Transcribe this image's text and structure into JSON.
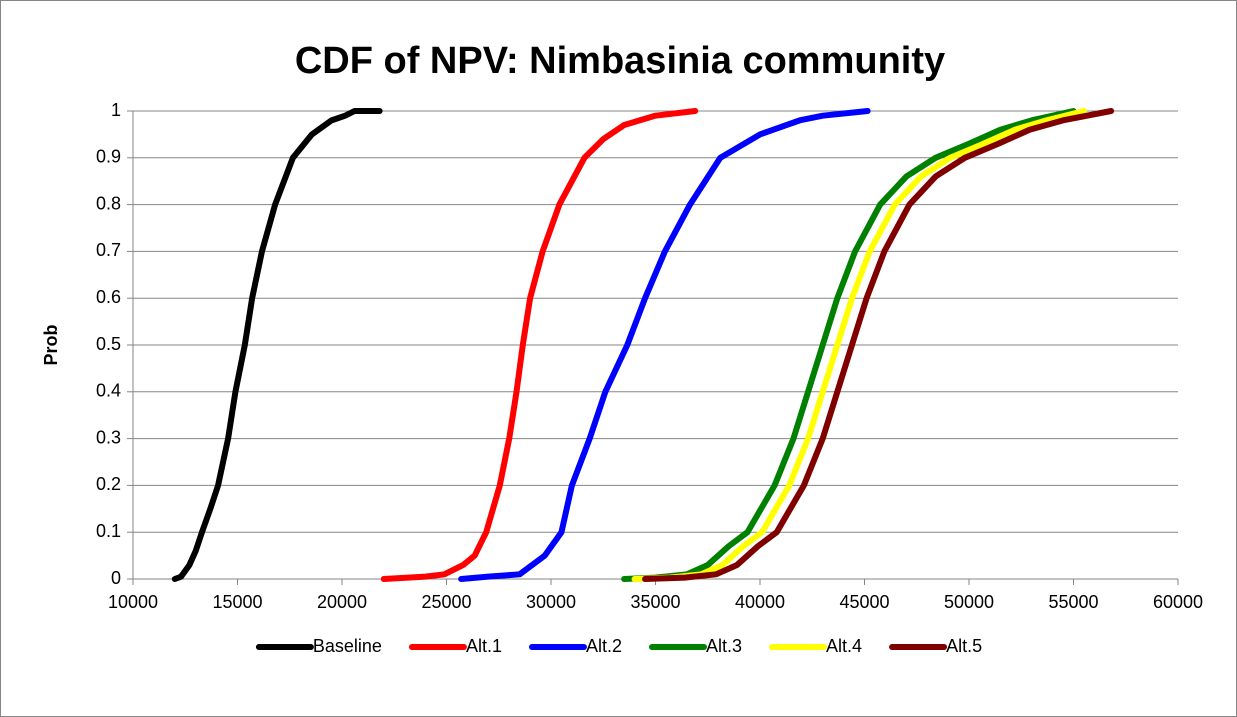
{
  "chart_data": {
    "type": "line",
    "title": "CDF of NPV: Nimbasinia community",
    "ylabel": "Prob",
    "xlim": [
      10000,
      60000
    ],
    "xticks": [
      10000,
      15000,
      20000,
      25000,
      30000,
      35000,
      40000,
      45000,
      50000,
      55000,
      60000
    ],
    "ylim": [
      0,
      1
    ],
    "yticks": [
      0,
      0.1,
      0.2,
      0.3,
      0.4,
      0.5,
      0.6,
      0.7,
      0.8,
      0.9,
      1
    ],
    "grid": true,
    "legend": "bottom",
    "series": [
      {
        "name": "Baseline",
        "color": "#000000",
        "x": [
          12000,
          12300,
          12700,
          13000,
          13300,
          13700,
          14070,
          14550,
          14900,
          15350,
          15700,
          16170,
          16800,
          17650,
          18560,
          19500,
          20150,
          20600,
          21800
        ],
        "values": [
          0,
          0.005,
          0.03,
          0.06,
          0.1,
          0.15,
          0.2,
          0.3,
          0.4,
          0.5,
          0.6,
          0.7,
          0.8,
          0.9,
          0.95,
          0.98,
          0.99,
          1,
          1
        ]
      },
      {
        "name": "Alt.1",
        "color": "#ff0000",
        "x": [
          22000,
          24000,
          24900,
          25800,
          26350,
          26900,
          27550,
          28000,
          28350,
          28650,
          29000,
          29600,
          30400,
          31600,
          32500,
          33500,
          35000,
          36900
        ],
        "values": [
          0,
          0.005,
          0.01,
          0.03,
          0.05,
          0.1,
          0.2,
          0.3,
          0.4,
          0.5,
          0.6,
          0.7,
          0.8,
          0.9,
          0.94,
          0.97,
          0.99,
          1
        ]
      },
      {
        "name": "Alt.2",
        "color": "#0000ff",
        "x": [
          25700,
          27000,
          28500,
          29700,
          30500,
          31000,
          31850,
          32600,
          33650,
          34500,
          35450,
          36650,
          38100,
          40000,
          41900,
          43000,
          45150
        ],
        "values": [
          0,
          0.005,
          0.01,
          0.05,
          0.1,
          0.2,
          0.3,
          0.4,
          0.5,
          0.6,
          0.7,
          0.8,
          0.9,
          0.95,
          0.98,
          0.99,
          1
        ]
      },
      {
        "name": "Alt.3",
        "color": "#008000",
        "x": [
          33500,
          35000,
          36500,
          37500,
          38500,
          39400,
          40700,
          41600,
          42300,
          43000,
          43700,
          44550,
          45750,
          47000,
          48400,
          50000,
          51500,
          53000,
          55000
        ],
        "values": [
          0,
          0.003,
          0.01,
          0.03,
          0.07,
          0.1,
          0.2,
          0.3,
          0.4,
          0.5,
          0.6,
          0.7,
          0.8,
          0.86,
          0.9,
          0.93,
          0.96,
          0.98,
          1
        ]
      },
      {
        "name": "Alt.4",
        "color": "#ffff00",
        "x": [
          34000,
          35700,
          37200,
          38200,
          39200,
          40100,
          41400,
          42300,
          43000,
          43700,
          44400,
          45250,
          46450,
          47700,
          49100,
          50700,
          52200,
          53700,
          55500
        ],
        "values": [
          0,
          0.003,
          0.01,
          0.03,
          0.07,
          0.1,
          0.2,
          0.3,
          0.4,
          0.5,
          0.6,
          0.7,
          0.8,
          0.86,
          0.9,
          0.93,
          0.96,
          0.98,
          1
        ]
      },
      {
        "name": "Alt.5",
        "color": "#800000",
        "x": [
          34500,
          36400,
          37900,
          38900,
          39900,
          40800,
          42100,
          43000,
          43700,
          44400,
          45100,
          45950,
          47150,
          48400,
          49800,
          51400,
          52900,
          54500,
          56800
        ],
        "values": [
          0,
          0.003,
          0.01,
          0.03,
          0.07,
          0.1,
          0.2,
          0.3,
          0.4,
          0.5,
          0.6,
          0.7,
          0.8,
          0.86,
          0.9,
          0.93,
          0.96,
          0.98,
          1
        ]
      }
    ]
  }
}
